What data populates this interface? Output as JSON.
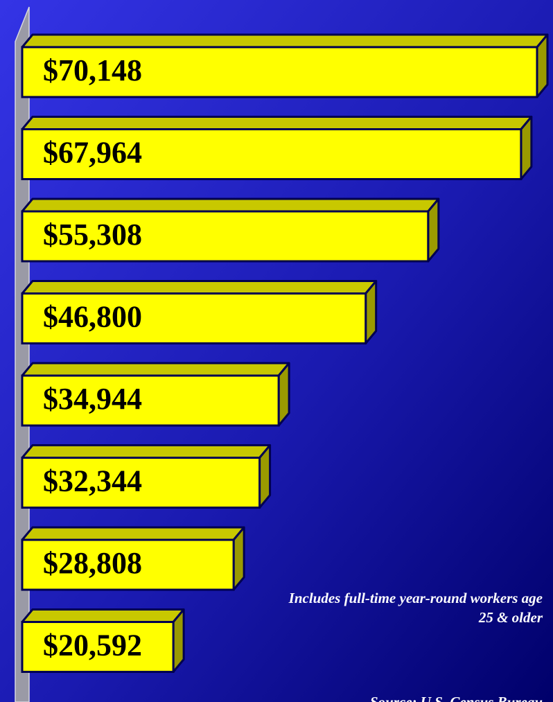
{
  "chart_data": {
    "type": "bar3d",
    "values": [
      70148,
      67964,
      55308,
      46800,
      34944,
      32344,
      28808,
      20592
    ],
    "value_labels": [
      "$70,148",
      "$67,964",
      "$55,308",
      "$46,800",
      "$34,944",
      "$32,344",
      "$28,808",
      "$20,592"
    ],
    "color": "#ffff00",
    "annotations": [
      "Includes full-time year-round workers age",
      "25 & older",
      "Source: U.S. Census Bureau"
    ]
  }
}
